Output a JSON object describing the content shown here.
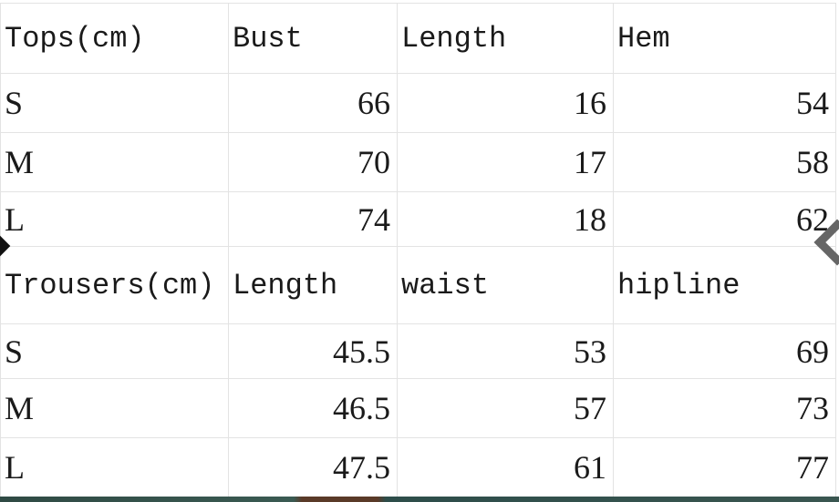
{
  "tops": {
    "headers": [
      "Tops(cm)",
      "Bust",
      "Length",
      "Hem"
    ],
    "rows": [
      [
        "S",
        "66",
        "16",
        "54"
      ],
      [
        "M",
        "70",
        "17",
        "58"
      ],
      [
        "L",
        "74",
        "18",
        "62"
      ]
    ]
  },
  "trousers": {
    "headers": [
      "Trousers(cm)",
      "Length",
      "waist",
      "hipline"
    ],
    "rows": [
      [
        "S",
        "45.5",
        "53",
        "69"
      ],
      [
        "M",
        "46.5",
        "57",
        "73"
      ],
      [
        "L",
        "47.5",
        "61",
        "77"
      ]
    ]
  },
  "icons": {
    "prev": "chevron-left-icon",
    "next": "chevron-left-icon"
  }
}
